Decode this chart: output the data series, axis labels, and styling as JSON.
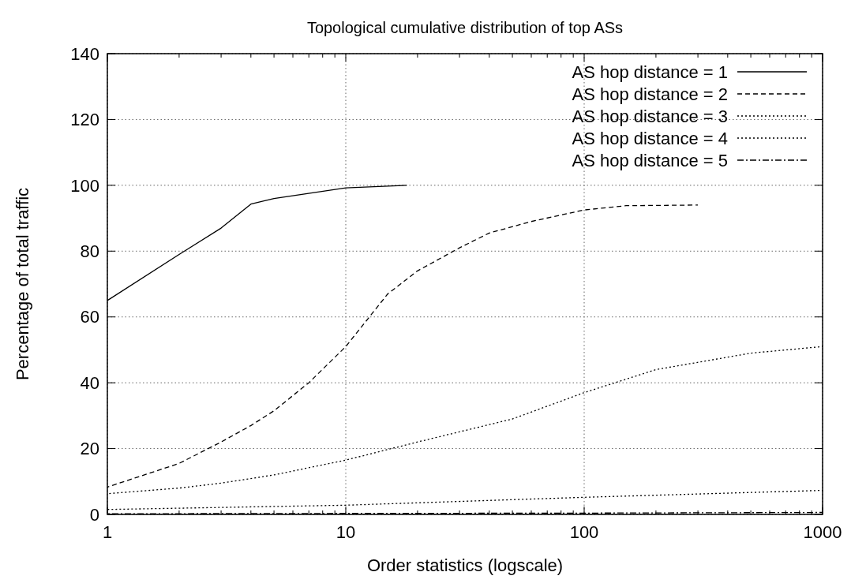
{
  "chart_data": {
    "type": "line",
    "title": "Topological cumulative distribution of top ASs",
    "xlabel": "Order statistics (logscale)",
    "ylabel": "Percentage of total traffic",
    "log": "x",
    "grid": true,
    "legend": "top right",
    "xlim": [
      1,
      1000
    ],
    "ylim": [
      0,
      140
    ],
    "xticks": [
      1,
      {
        "value": 2,
        "label": null
      },
      {
        "value": 3,
        "label": null
      },
      {
        "value": 4,
        "label": null
      },
      {
        "value": 5,
        "label": null
      },
      {
        "value": 6,
        "label": null
      },
      {
        "value": 7,
        "label": null
      },
      {
        "value": 8,
        "label": null
      },
      {
        "value": 9,
        "label": null
      },
      10,
      {
        "value": 20,
        "label": null
      },
      {
        "value": 30,
        "label": null
      },
      {
        "value": 40,
        "label": null
      },
      {
        "value": 50,
        "label": null
      },
      {
        "value": 60,
        "label": null
      },
      {
        "value": 70,
        "label": null
      },
      {
        "value": 80,
        "label": null
      },
      {
        "value": 90,
        "label": null
      },
      100,
      {
        "value": 200,
        "label": null
      },
      {
        "value": 300,
        "label": null
      },
      {
        "value": 400,
        "label": null
      },
      {
        "value": 500,
        "label": null
      },
      {
        "value": 600,
        "label": null
      },
      {
        "value": 700,
        "label": null
      },
      {
        "value": 800,
        "label": null
      },
      {
        "value": 900,
        "label": null
      },
      1000
    ],
    "yticks": [
      0,
      20,
      40,
      60,
      80,
      100,
      120,
      140
    ],
    "series": [
      {
        "name": "AS hop distance = 1",
        "color": "#000000",
        "line_style": "solid",
        "x": [
          1,
          2,
          3,
          4,
          5,
          10,
          18
        ],
        "values": [
          65,
          79,
          87,
          94.3,
          96,
          99.2,
          100
        ]
      },
      {
        "name": "AS hop distance = 2",
        "color": "#000000",
        "line_style": "dashed",
        "x": [
          1,
          2,
          3,
          4,
          5,
          7,
          10,
          15,
          20,
          30,
          40,
          60,
          100,
          150,
          300
        ],
        "values": [
          8.3,
          15.5,
          22,
          27,
          31.5,
          40,
          51,
          67,
          74,
          81,
          85.5,
          89,
          92.5,
          93.8,
          94
        ]
      },
      {
        "name": "AS hop distance = 3",
        "color": "#000000",
        "line_style": "dotted",
        "x": [
          1,
          2,
          3,
          5,
          10,
          20,
          50,
          100,
          200,
          500,
          1000
        ],
        "values": [
          6.3,
          8,
          9.5,
          12,
          16.5,
          22,
          29,
          37,
          44,
          49,
          51
        ]
      },
      {
        "name": "AS hop distance = 4",
        "color": "#000000",
        "line_style": "dotted",
        "x": [
          1,
          10,
          100,
          1000
        ],
        "values": [
          1.5,
          2.8,
          5.2,
          7.3
        ]
      },
      {
        "name": "AS hop distance = 5",
        "color": "#000000",
        "line_style": "dashdot",
        "x": [
          1,
          10,
          100,
          1000
        ],
        "values": [
          0.2,
          0.3,
          0.4,
          0.6
        ]
      }
    ]
  }
}
